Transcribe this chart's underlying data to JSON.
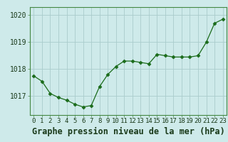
{
  "x": [
    0,
    1,
    2,
    3,
    4,
    5,
    6,
    7,
    8,
    9,
    10,
    11,
    12,
    13,
    14,
    15,
    16,
    17,
    18,
    19,
    20,
    21,
    22,
    23
  ],
  "y": [
    1017.75,
    1017.55,
    1017.1,
    1016.95,
    1016.85,
    1016.7,
    1016.6,
    1016.65,
    1017.35,
    1017.8,
    1018.1,
    1018.3,
    1018.3,
    1018.25,
    1018.2,
    1018.55,
    1018.5,
    1018.45,
    1018.45,
    1018.45,
    1018.5,
    1019.0,
    1019.7,
    1019.85
  ],
  "line_color": "#1a6b1a",
  "marker": "D",
  "marker_size": 2.5,
  "bg_color": "#ceeaea",
  "grid_color": "#aacccc",
  "border_color": "#448844",
  "ylabel_ticks": [
    1017,
    1018,
    1019,
    1020
  ],
  "ylim": [
    1016.3,
    1020.3
  ],
  "xlim": [
    -0.5,
    23.5
  ],
  "xlabel": "Graphe pression niveau de la mer (hPa)",
  "xlabel_fontsize": 8.5,
  "tick_fontsize": 6.5,
  "ytick_fontsize": 7
}
